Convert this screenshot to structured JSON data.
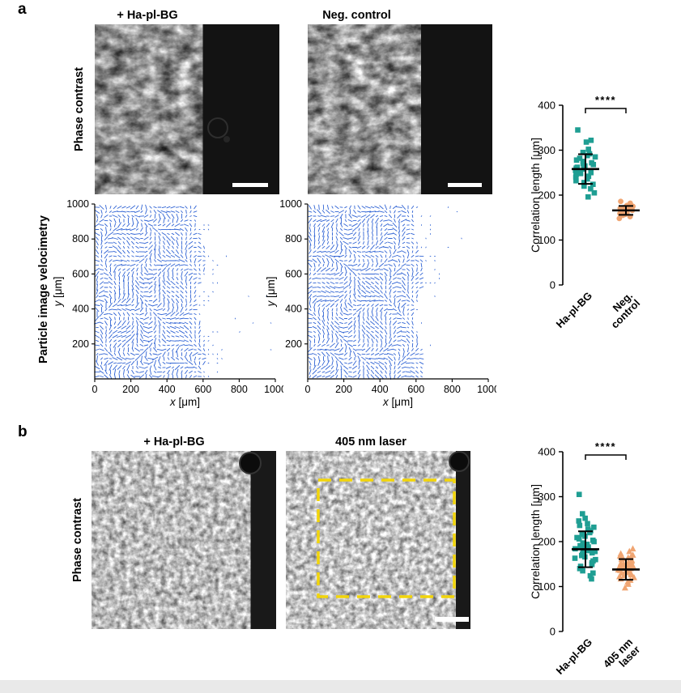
{
  "figure": {
    "background": "#ffffff",
    "footer_bar_color": "#e9e9e9"
  },
  "colors": {
    "teal": "#1f9e93",
    "orange": "#f0a572",
    "vector_blue": "#2f63d4",
    "laser_box_yellow": "#f2d50a",
    "axis_black": "#000000"
  },
  "panel_a": {
    "label": "a",
    "columns": [
      "+ Ha-pl-BG",
      "Neg. control"
    ],
    "row_labels": [
      "Phase contrast",
      "Particle image velocimetry"
    ],
    "piv": {
      "xlabel_var": "x",
      "xlabel_unit": "[μm]",
      "ylabel_var": "y",
      "ylabel_unit": "[μm]",
      "xlim": [
        0,
        1000
      ],
      "ylim": [
        0,
        1000
      ],
      "xticks": [
        0,
        200,
        400,
        600,
        800,
        1000
      ],
      "yticks": [
        200,
        400,
        600,
        800,
        1000
      ],
      "plots": [
        {
          "name": "piv-ha-pl-bg",
          "front_x": 590,
          "seed": 11
        },
        {
          "name": "piv-neg-control",
          "front_x": 620,
          "seed": 47
        }
      ]
    },
    "scatter": {
      "type": "scatter",
      "ylabel": "Correlation length [μm]",
      "ylim": [
        0,
        400
      ],
      "yticks": [
        0,
        100,
        200,
        300,
        400
      ],
      "significance": "****",
      "groups": [
        {
          "label_lines": [
            "Ha-pl-BG"
          ],
          "marker": "square",
          "color": "#1f9e93",
          "spread": 13,
          "mean": 258,
          "err": 33,
          "values": [
            345,
            322,
            318,
            302,
            295,
            292,
            288,
            285,
            282,
            278,
            275,
            272,
            270,
            268,
            265,
            262,
            260,
            258,
            255,
            252,
            250,
            248,
            245,
            242,
            240,
            236,
            232,
            228,
            224,
            220,
            214,
            205,
            196
          ]
        },
        {
          "label_lines": [
            "Neg.",
            "control"
          ],
          "marker": "circle",
          "color": "#f0a572",
          "spread": 9,
          "mean": 166,
          "err": 10,
          "values": [
            186,
            182,
            179,
            177,
            175,
            174,
            172,
            171,
            170,
            169,
            168,
            167,
            166,
            165,
            164,
            162,
            161,
            159,
            157,
            155,
            152,
            148
          ]
        }
      ]
    }
  },
  "panel_b": {
    "label": "b",
    "columns": [
      "+ Ha-pl-BG",
      "405 nm laser"
    ],
    "row_labels": [
      "Phase contrast"
    ],
    "scatter": {
      "type": "scatter",
      "ylabel": "Correlation length [μm]",
      "ylim": [
        0,
        400
      ],
      "yticks": [
        0,
        100,
        200,
        300,
        400
      ],
      "significance": "****",
      "groups": [
        {
          "label_lines": [
            "Ha-pl-BG"
          ],
          "marker": "square",
          "color": "#1f9e93",
          "spread": 13,
          "mean": 183,
          "err": 40,
          "values": [
            305,
            262,
            252,
            246,
            240,
            236,
            232,
            228,
            224,
            220,
            216,
            212,
            209,
            206,
            203,
            200,
            197,
            194,
            191,
            188,
            186,
            184,
            182,
            180,
            178,
            175,
            172,
            169,
            166,
            163,
            160,
            157,
            153,
            149,
            145,
            140,
            135,
            130,
            124,
            117
          ]
        },
        {
          "label_lines": [
            "405 nm",
            "laser"
          ],
          "marker": "triangle",
          "color": "#f0a572",
          "spread": 10,
          "mean": 138,
          "err": 23,
          "values": [
            184,
            178,
            173,
            170,
            168,
            166,
            164,
            162,
            160,
            158,
            156,
            154,
            152,
            151,
            150,
            148,
            147,
            146,
            145,
            143,
            142,
            141,
            140,
            138,
            137,
            136,
            134,
            133,
            131,
            130,
            128,
            126,
            124,
            122,
            120,
            117,
            114,
            110,
            105,
            97
          ]
        }
      ]
    }
  }
}
